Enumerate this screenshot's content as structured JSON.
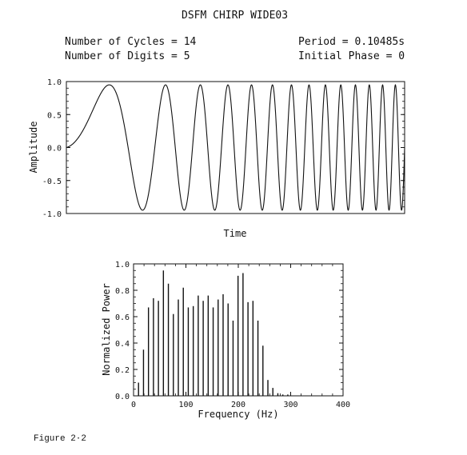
{
  "header": {
    "title": "DSFM CHIRP WIDE03",
    "cycles": "Number of Cycles = 14",
    "digits": "Number of Digits = 5",
    "period": "Period = 0.10485s",
    "phase": "Initial Phase = 0"
  },
  "caption": "Figure 2·2",
  "chart_data": [
    {
      "type": "line",
      "xlabel": "Time",
      "ylabel": "Amplitude",
      "ylim": [
        -1.0,
        1.0
      ],
      "yticks": [
        "1.0",
        "0.5",
        "0.0",
        "-0.5",
        "-1.0"
      ],
      "grid": false,
      "signal": {
        "cycles": 14,
        "initial_phase": 0,
        "amplitude_peak": 0.95
      }
    },
    {
      "type": "bar",
      "xlabel": "Frequency (Hz)",
      "ylabel": "Normalized Power",
      "xlim": [
        0,
        400
      ],
      "ylim": [
        0.0,
        1.0
      ],
      "xticks": [
        "0",
        "100",
        "200",
        "300",
        "400"
      ],
      "yticks": [
        "0.0",
        "0.2",
        "0.4",
        "0.6",
        "0.8",
        "1.0"
      ],
      "grid": false,
      "x": [
        9.5,
        19,
        28.5,
        38,
        47.5,
        57,
        66.5,
        76,
        85.5,
        95,
        104.5,
        114,
        123.5,
        133,
        142.5,
        152,
        161.5,
        171,
        180.5,
        190,
        199.5,
        209,
        218.5,
        228,
        237.5,
        247,
        256.5,
        266,
        275.5,
        285,
        294.5
      ],
      "values": [
        0.1,
        0.35,
        0.67,
        0.74,
        0.72,
        0.95,
        0.85,
        0.62,
        0.73,
        0.82,
        0.67,
        0.68,
        0.76,
        0.72,
        0.76,
        0.67,
        0.73,
        0.77,
        0.7,
        0.57,
        0.91,
        0.93,
        0.71,
        0.72,
        0.57,
        0.38,
        0.12,
        0.06,
        0.02,
        0.01,
        0.01
      ]
    }
  ]
}
